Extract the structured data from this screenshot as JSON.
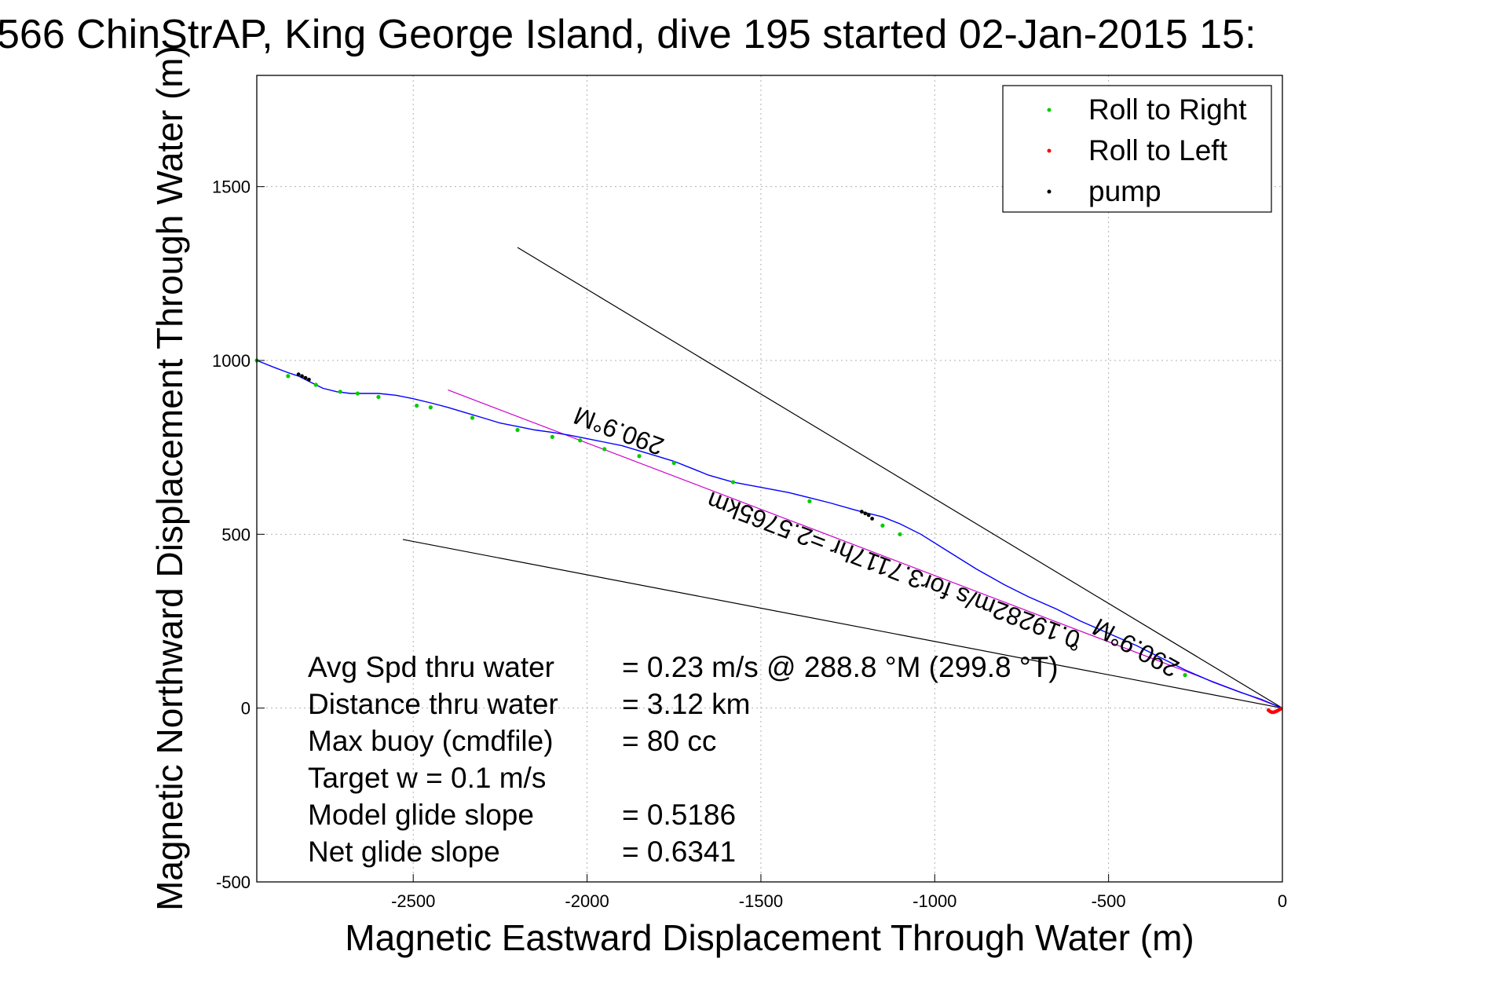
{
  "chart_data": {
    "type": "line",
    "title": "566 ChinStrAP, King George Island, dive 195 started 02-Jan-2015 15:",
    "xlabel": "Magnetic Eastward Displacement Through Water (m)",
    "ylabel": "Magnetic Northward Displacement Through Water (m)",
    "xlim": [
      -2950,
      0
    ],
    "ylim": [
      -500,
      1820
    ],
    "xticks": [
      -2500,
      -2000,
      -1500,
      -1000,
      -500,
      0
    ],
    "yticks": [
      -500,
      0,
      500,
      1000,
      1500
    ],
    "grid": true,
    "legend_position": "top-right",
    "legend": [
      {
        "label": "Roll to Right",
        "color": "#00cc00"
      },
      {
        "label": "Roll to Left",
        "color": "#ff0000"
      },
      {
        "label": "pump",
        "color": "#000000"
      }
    ],
    "series": [
      {
        "name": "track",
        "color": "#0000ff",
        "x": [
          0,
          -20,
          -60,
          -120,
          -200,
          -280,
          -350,
          -420,
          -500,
          -580,
          -650,
          -730,
          -800,
          -880,
          -960,
          -1040,
          -1100,
          -1150,
          -1190,
          -1230,
          -1300,
          -1360,
          -1420,
          -1500,
          -1580,
          -1650,
          -1700,
          -1750,
          -1800,
          -1850,
          -1900,
          -1950,
          -2000,
          -2050,
          -2100,
          -2150,
          -2200,
          -2250,
          -2300,
          -2350,
          -2400,
          -2450,
          -2500,
          -2550,
          -2600,
          -2650,
          -2680,
          -2720,
          -2760,
          -2800,
          -2830,
          -2860,
          -2900,
          -2950
        ],
        "y": [
          0,
          8,
          25,
          45,
          75,
          110,
          145,
          180,
          215,
          250,
          285,
          320,
          355,
          400,
          450,
          500,
          530,
          550,
          560,
          570,
          590,
          605,
          620,
          635,
          650,
          670,
          690,
          710,
          725,
          740,
          755,
          765,
          775,
          785,
          793,
          800,
          810,
          820,
          835,
          850,
          865,
          878,
          890,
          900,
          905,
          905,
          905,
          910,
          920,
          940,
          955,
          965,
          980,
          1000
        ]
      }
    ],
    "roll_right": {
      "x": [
        -280,
        -1100,
        -1150,
        -1360,
        -1580,
        -1750,
        -1850,
        -1950,
        -2020,
        -2100,
        -2200,
        -2330,
        -2450,
        -2490,
        -2600,
        -2660,
        -2710,
        -2780,
        -2860,
        -2950
      ],
      "y": [
        95,
        500,
        525,
        595,
        650,
        705,
        725,
        745,
        770,
        780,
        800,
        835,
        865,
        870,
        895,
        905,
        910,
        930,
        955,
        1000
      ]
    },
    "roll_left": {
      "x": [
        -5,
        -10,
        -15,
        -20,
        -25,
        -30,
        -35,
        -40
      ],
      "y": [
        -2,
        -5,
        -8,
        -10,
        -12,
        -12,
        -10,
        -6
      ]
    },
    "pump": {
      "x": [
        -1210,
        -1200,
        -1190,
        -1180,
        -2830,
        -2820,
        -2810,
        -2800
      ],
      "y": [
        565,
        560,
        555,
        545,
        960,
        955,
        950,
        945
      ]
    },
    "lines": [
      {
        "name": "upper bound",
        "color": "#000000",
        "x": [
          0,
          -2200
        ],
        "y": [
          0,
          1325
        ]
      },
      {
        "name": "lower bound",
        "color": "#000000",
        "x": [
          0,
          -2530
        ],
        "y": [
          0,
          485
        ]
      },
      {
        "name": "heading",
        "color": "#cc00cc",
        "x": [
          0,
          -2400
        ],
        "y": [
          0,
          915
        ]
      }
    ],
    "annotations": [
      {
        "text": "290.9°M",
        "x": -1900,
        "y": 820,
        "rotate": 200.9
      },
      {
        "text": "0.19282m/s for3.7117hr =2.5765km",
        "x": -1110,
        "y": 420,
        "rotate": 200.9
      },
      {
        "text": "290.9°M",
        "x": -410,
        "y": 195,
        "rotate": 209
      },
      {
        "text": "°",
        "x": -600,
        "y": 135,
        "rotate": 0
      }
    ],
    "stats": [
      {
        "label": "Avg Spd thru water",
        "value": "=  0.23 m/s @ 288.8 °M (299.8 °T)"
      },
      {
        "label": "Distance thru water",
        "value": "=  3.12 km"
      },
      {
        "label": "Max buoy (cmdfile)",
        "value": "= 80 cc"
      },
      {
        "label": "Target w    = 0.1 m/s",
        "value": ""
      },
      {
        "label": "Model glide slope",
        "value": "= 0.5186"
      },
      {
        "label": "Net glide slope",
        "value": "= 0.6341"
      }
    ]
  }
}
